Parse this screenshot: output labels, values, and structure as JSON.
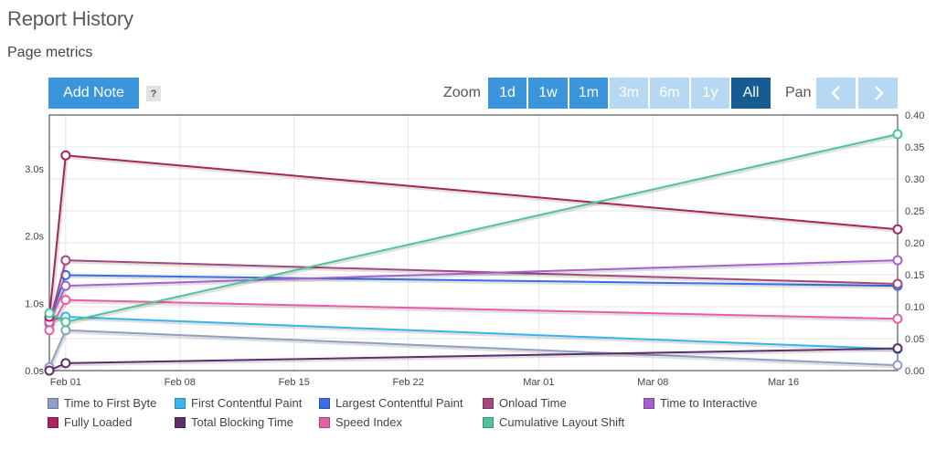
{
  "header": {
    "title": "Report History",
    "subtitle": "Page metrics"
  },
  "toolbar": {
    "add_note_label": "Add Note",
    "help_label": "?",
    "zoom_label": "Zoom",
    "pan_label": "Pan",
    "zoom_options": [
      {
        "label": "1d",
        "state": "on"
      },
      {
        "label": "1w",
        "state": "on"
      },
      {
        "label": "1m",
        "state": "on"
      },
      {
        "label": "3m",
        "state": "off"
      },
      {
        "label": "6m",
        "state": "off"
      },
      {
        "label": "1y",
        "state": "off"
      },
      {
        "label": "All",
        "state": "selected"
      }
    ]
  },
  "chart_data": {
    "type": "line",
    "x": [
      "2024-01-31",
      "2024-02-01",
      "2024-03-23"
    ],
    "x_ticks": [
      "Feb 01",
      "Feb 08",
      "Feb 15",
      "Feb 22",
      "Mar 01",
      "Mar 08",
      "Mar 16"
    ],
    "y_left": {
      "ticks": [
        "0.0s",
        "1.0s",
        "2.0s",
        "3.0s"
      ],
      "range": [
        0,
        3.8
      ]
    },
    "y_right": {
      "ticks": [
        "0.00",
        "0.05",
        "0.10",
        "0.15",
        "0.20",
        "0.25",
        "0.30",
        "0.35",
        "0.40"
      ],
      "range": [
        0,
        0.4
      ]
    },
    "grid": true,
    "legend_position": "bottom",
    "series": [
      {
        "name": "Time to First Byte",
        "color": "#8fa0c4",
        "axis": "left",
        "values": [
          0.05,
          0.6,
          0.08
        ]
      },
      {
        "name": "First Contentful Paint",
        "color": "#36b6ea",
        "axis": "left",
        "values": [
          0.75,
          0.8,
          0.32
        ]
      },
      {
        "name": "Largest Contentful Paint",
        "color": "#3a6ee6",
        "axis": "left",
        "values": [
          0.75,
          1.42,
          1.26
        ]
      },
      {
        "name": "Onload Time",
        "color": "#a34a7a",
        "axis": "left",
        "values": [
          0.7,
          1.64,
          1.29
        ]
      },
      {
        "name": "Time to Interactive",
        "color": "#a760cf",
        "axis": "left",
        "values": [
          0.72,
          1.26,
          1.64
        ]
      },
      {
        "name": "Fully Loaded",
        "color": "#a8245f",
        "axis": "left",
        "values": [
          0.8,
          3.2,
          2.1
        ]
      },
      {
        "name": "Total Blocking Time",
        "color": "#5e2d6c",
        "axis": "left",
        "values": [
          0.0,
          0.11,
          0.33
        ]
      },
      {
        "name": "Speed Index",
        "color": "#e55fa6",
        "axis": "left",
        "values": [
          0.6,
          1.05,
          0.77
        ]
      },
      {
        "name": "Cumulative Layout Shift",
        "color": "#4fc39a",
        "axis": "right",
        "values": [
          0.09,
          0.076,
          0.37
        ]
      }
    ]
  }
}
